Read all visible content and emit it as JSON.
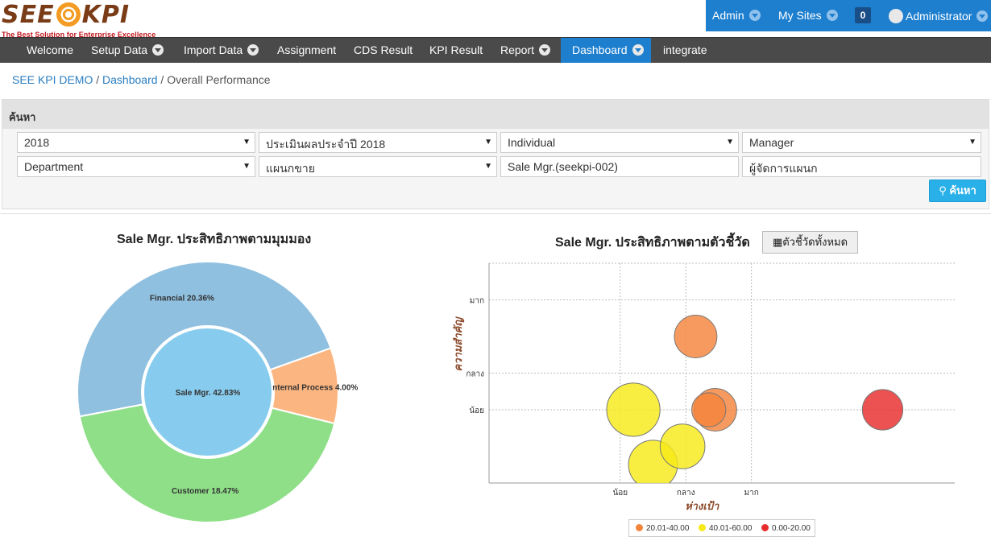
{
  "logo": {
    "text_left": "SEE",
    "text_right": "KPI",
    "tagline": "The Best Solution for Enterprise Excellence"
  },
  "userbar": {
    "admin": "Admin",
    "my_sites": "My Sites",
    "notifications": "0",
    "user": "Administrator"
  },
  "nav": {
    "welcome": "Welcome",
    "setup_data": "Setup Data",
    "import_data": "Import Data",
    "assignment": "Assignment",
    "cds_result": "CDS Result",
    "kpi_result": "KPI Result",
    "report": "Report",
    "dashboard": "Dashboard",
    "integrate": "integrate"
  },
  "breadcrumb": {
    "root": "SEE KPI DEMO",
    "section": "Dashboard",
    "current": "Overall Performance"
  },
  "search": {
    "title": "ค้นหา",
    "year": "2018",
    "period": "ประเมินผลประจำปี 2018",
    "appraisal_type": "Individual",
    "level": "Manager",
    "org_level": "Department",
    "org": "แผนกขาย",
    "employee": "Sale Mgr.(seekpi-002)",
    "position": "ผู้จัดการแผนก",
    "button": "ค้นหา"
  },
  "donut": {
    "title": "Sale Mgr. ประสิทธิภาพตามมุมมอง",
    "center_label": "Sale Mgr. 42.83%",
    "colors": {
      "center": "#87ccee",
      "financial": "#8fc0e0",
      "process": "#fbb580",
      "customer": "#8fdf88"
    }
  },
  "chart_data": [
    {
      "type": "pie",
      "title": "Sale Mgr. ประสิทธิภาพตามมุมมอง",
      "center": {
        "label": "Sale Mgr.",
        "value": 42.83
      },
      "slices": [
        {
          "label": "Financial",
          "value": 20.36,
          "display": "Financial 20.36%"
        },
        {
          "label": "Internal Process",
          "value": 4.0,
          "display": "Internal Process 4.00%"
        },
        {
          "label": "Customer",
          "value": 18.47,
          "display": "Customer 18.47%"
        }
      ]
    },
    {
      "type": "scatter",
      "title": "Sale Mgr. ประสิทธิภาพตามตัวชี้วัด",
      "xlabel": "ห่างเป้า",
      "ylabel": "ความสำคัญ",
      "x_ticks": [
        "น้อย",
        "กลาง",
        "มาก"
      ],
      "y_ticks": [
        "มาก",
        "กลาง",
        "น้อย"
      ],
      "x_tick_values": [
        1,
        2,
        3
      ],
      "y_tick_values": [
        3,
        1,
        0
      ],
      "xlim": [
        -1,
        6.1
      ],
      "ylim": [
        -2,
        4
      ],
      "grid": true,
      "legend_position": "bottom",
      "legend": [
        {
          "label": "20.01-40.00",
          "color": "#f4843c"
        },
        {
          "label": "40.01-60.00",
          "color": "#f7ea18"
        },
        {
          "label": "0.00-20.00",
          "color": "#e82c2c"
        }
      ],
      "points": [
        {
          "x": 2.15,
          "y": 2.0,
          "r": 1.0,
          "group": "20.01-40.00"
        },
        {
          "x": 2.45,
          "y": 0.0,
          "r": 1.0,
          "group": "20.01-40.00"
        },
        {
          "x": 2.35,
          "y": 0.0,
          "r": 0.8,
          "group": "20.01-40.00"
        },
        {
          "x": 1.2,
          "y": 0.0,
          "r": 1.25,
          "group": "40.01-60.00"
        },
        {
          "x": 1.5,
          "y": -1.5,
          "r": 1.15,
          "group": "40.01-60.00"
        },
        {
          "x": 1.95,
          "y": -1.0,
          "r": 1.05,
          "group": "40.01-60.00"
        },
        {
          "x": 5.0,
          "y": 0.0,
          "r": 0.95,
          "group": "0.00-20.00"
        }
      ]
    }
  ],
  "bubble": {
    "title": "Sale Mgr. ประสิทธิภาพตามตัวชี้วัด",
    "all_kpi_button": "ตัวชี้วัดทั้งหมด"
  }
}
